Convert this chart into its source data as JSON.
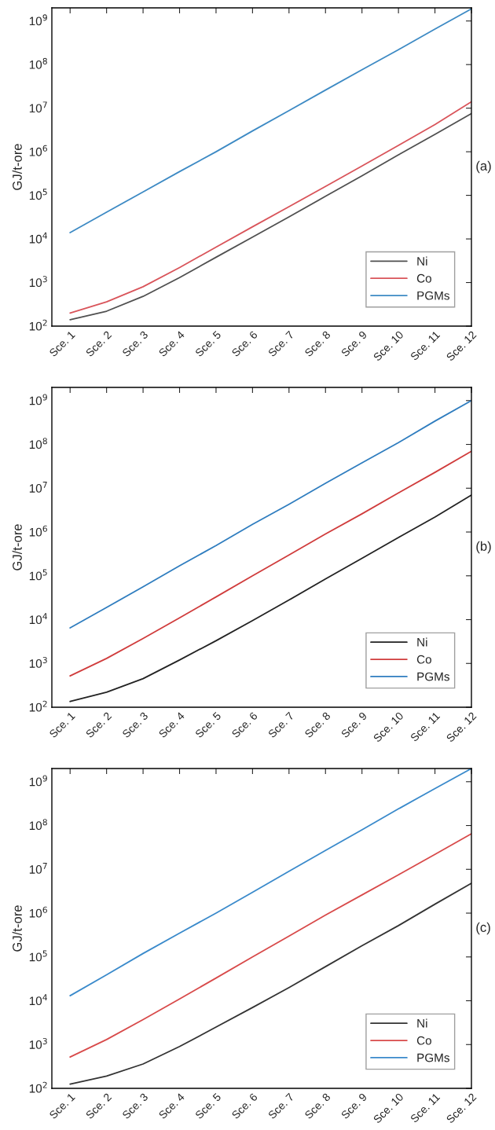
{
  "chart_data": [
    {
      "type": "line",
      "ylabel": "GJ/t-ore",
      "annotations": [
        "(a)"
      ],
      "log": "y",
      "legend": "lower right",
      "grid": false,
      "categories": [
        "Sce. 1",
        "Sce. 2",
        "Sce. 3",
        "Sce. 4",
        "Sce. 5",
        "Sce. 6",
        "Sce. 7",
        "Sce. 8",
        "Sce. 9",
        "Sce. 10",
        "Sce. 11",
        "Sce. 12"
      ],
      "ylim": [
        100,
        2000000000
      ],
      "yticks": [
        {
          "value": 100,
          "label": "10$^{2}$"
        },
        {
          "value": 1000,
          "label": "10$^{3}$"
        },
        {
          "value": 10000,
          "label": "10$^{4}$"
        },
        {
          "value": 100000,
          "label": "10$^{5}$"
        },
        {
          "value": 1000000,
          "label": "10$^{6}$"
        },
        {
          "value": 10000000,
          "label": "10$^{7}$"
        },
        {
          "value": 100000000,
          "label": "10$^{8}$"
        },
        {
          "value": 1000000000,
          "label": "10$^{9}$"
        }
      ],
      "series": [
        {
          "name": "Ni",
          "color": "#505050",
          "values": [
            140,
            220,
            480,
            1300,
            3800,
            11000,
            32000,
            95000,
            280000,
            850000,
            2500000,
            7500000
          ]
        },
        {
          "name": "Co",
          "color": "#d9545a",
          "values": [
            200,
            360,
            800,
            2200,
            6500,
            19000,
            55000,
            160000,
            470000,
            1400000,
            4200000,
            14000000
          ]
        },
        {
          "name": "PGMs",
          "color": "#3d8ac4",
          "values": [
            14000,
            41000,
            120000,
            350000,
            1000000,
            3000000,
            8800000,
            26000000,
            76000000,
            220000000,
            650000000,
            1900000000
          ]
        }
      ]
    },
    {
      "type": "line",
      "ylabel": "GJ/t-ore",
      "annotations": [
        "(b)"
      ],
      "log": "y",
      "legend": "lower right",
      "grid": false,
      "categories": [
        "Sce. 1",
        "Sce. 2",
        "Sce. 3",
        "Sce. 4",
        "Sce. 5",
        "Sce. 6",
        "Sce. 7",
        "Sce. 8",
        "Sce. 9",
        "Sce. 10",
        "Sce. 11",
        "Sce. 12"
      ],
      "ylim": [
        100,
        2000000000
      ],
      "yticks": [
        {
          "value": 100,
          "label": "10$^{2}$"
        },
        {
          "value": 1000,
          "label": "10$^{3}$"
        },
        {
          "value": 10000,
          "label": "10$^{4}$"
        },
        {
          "value": 100000,
          "label": "10$^{5}$"
        },
        {
          "value": 1000000,
          "label": "10$^{6}$"
        },
        {
          "value": 10000000,
          "label": "10$^{7}$"
        },
        {
          "value": 100000000,
          "label": "10$^{8}$"
        },
        {
          "value": 1000000000,
          "label": "10$^{9}$"
        }
      ],
      "series": [
        {
          "name": "Ni",
          "color": "#222222",
          "values": [
            135,
            220,
            450,
            1200,
            3300,
            9500,
            28000,
            85000,
            250000,
            750000,
            2200000,
            7000000
          ]
        },
        {
          "name": "Co",
          "color": "#d03c3c",
          "values": [
            520,
            1300,
            3700,
            11000,
            33000,
            100000,
            300000,
            900000,
            2600000,
            7800000,
            23000000,
            70000000
          ]
        },
        {
          "name": "PGMs",
          "color": "#2f7dbf",
          "values": [
            6500,
            19000,
            56000,
            170000,
            490000,
            1500000,
            4300000,
            13000000,
            38000000,
            110000000,
            340000000,
            1000000000
          ]
        }
      ]
    },
    {
      "type": "line",
      "ylabel": "GJ/t-ore",
      "annotations": [
        "(c)"
      ],
      "log": "y",
      "legend": "lower right",
      "grid": false,
      "categories": [
        "Sce. 1",
        "Sce. 2",
        "Sce. 3",
        "Sce. 4",
        "Sce. 5",
        "Sce. 6",
        "Sce. 7",
        "Sce. 8",
        "Sce. 9",
        "Sce. 10",
        "Sce. 11",
        "Sce. 12"
      ],
      "ylim": [
        100,
        2000000000
      ],
      "yticks": [
        {
          "value": 100,
          "label": "10$^{2}$"
        },
        {
          "value": 1000,
          "label": "10$^{3}$"
        },
        {
          "value": 10000,
          "label": "10$^{4}$"
        },
        {
          "value": 100000,
          "label": "10$^{5}$"
        },
        {
          "value": 1000000,
          "label": "10$^{6}$"
        },
        {
          "value": 10000000,
          "label": "10$^{7}$"
        },
        {
          "value": 100000000,
          "label": "10$^{8}$"
        },
        {
          "value": 1000000000,
          "label": "10$^{9}$"
        }
      ],
      "series": [
        {
          "name": "Ni",
          "color": "#333333",
          "values": [
            125,
            190,
            360,
            900,
            2500,
            7000,
            20000,
            60000,
            180000,
            520000,
            1600000,
            4800000
          ]
        },
        {
          "name": "Co",
          "color": "#d84a4a",
          "values": [
            520,
            1300,
            3700,
            11000,
            33000,
            100000,
            300000,
            900000,
            2600000,
            7500000,
            22000000,
            65000000
          ]
        },
        {
          "name": "PGMs",
          "color": "#3a8acb",
          "values": [
            13000,
            39000,
            120000,
            350000,
            1000000,
            3000000,
            9000000,
            27000000,
            80000000,
            240000000,
            700000000,
            2000000000
          ]
        }
      ]
    }
  ]
}
